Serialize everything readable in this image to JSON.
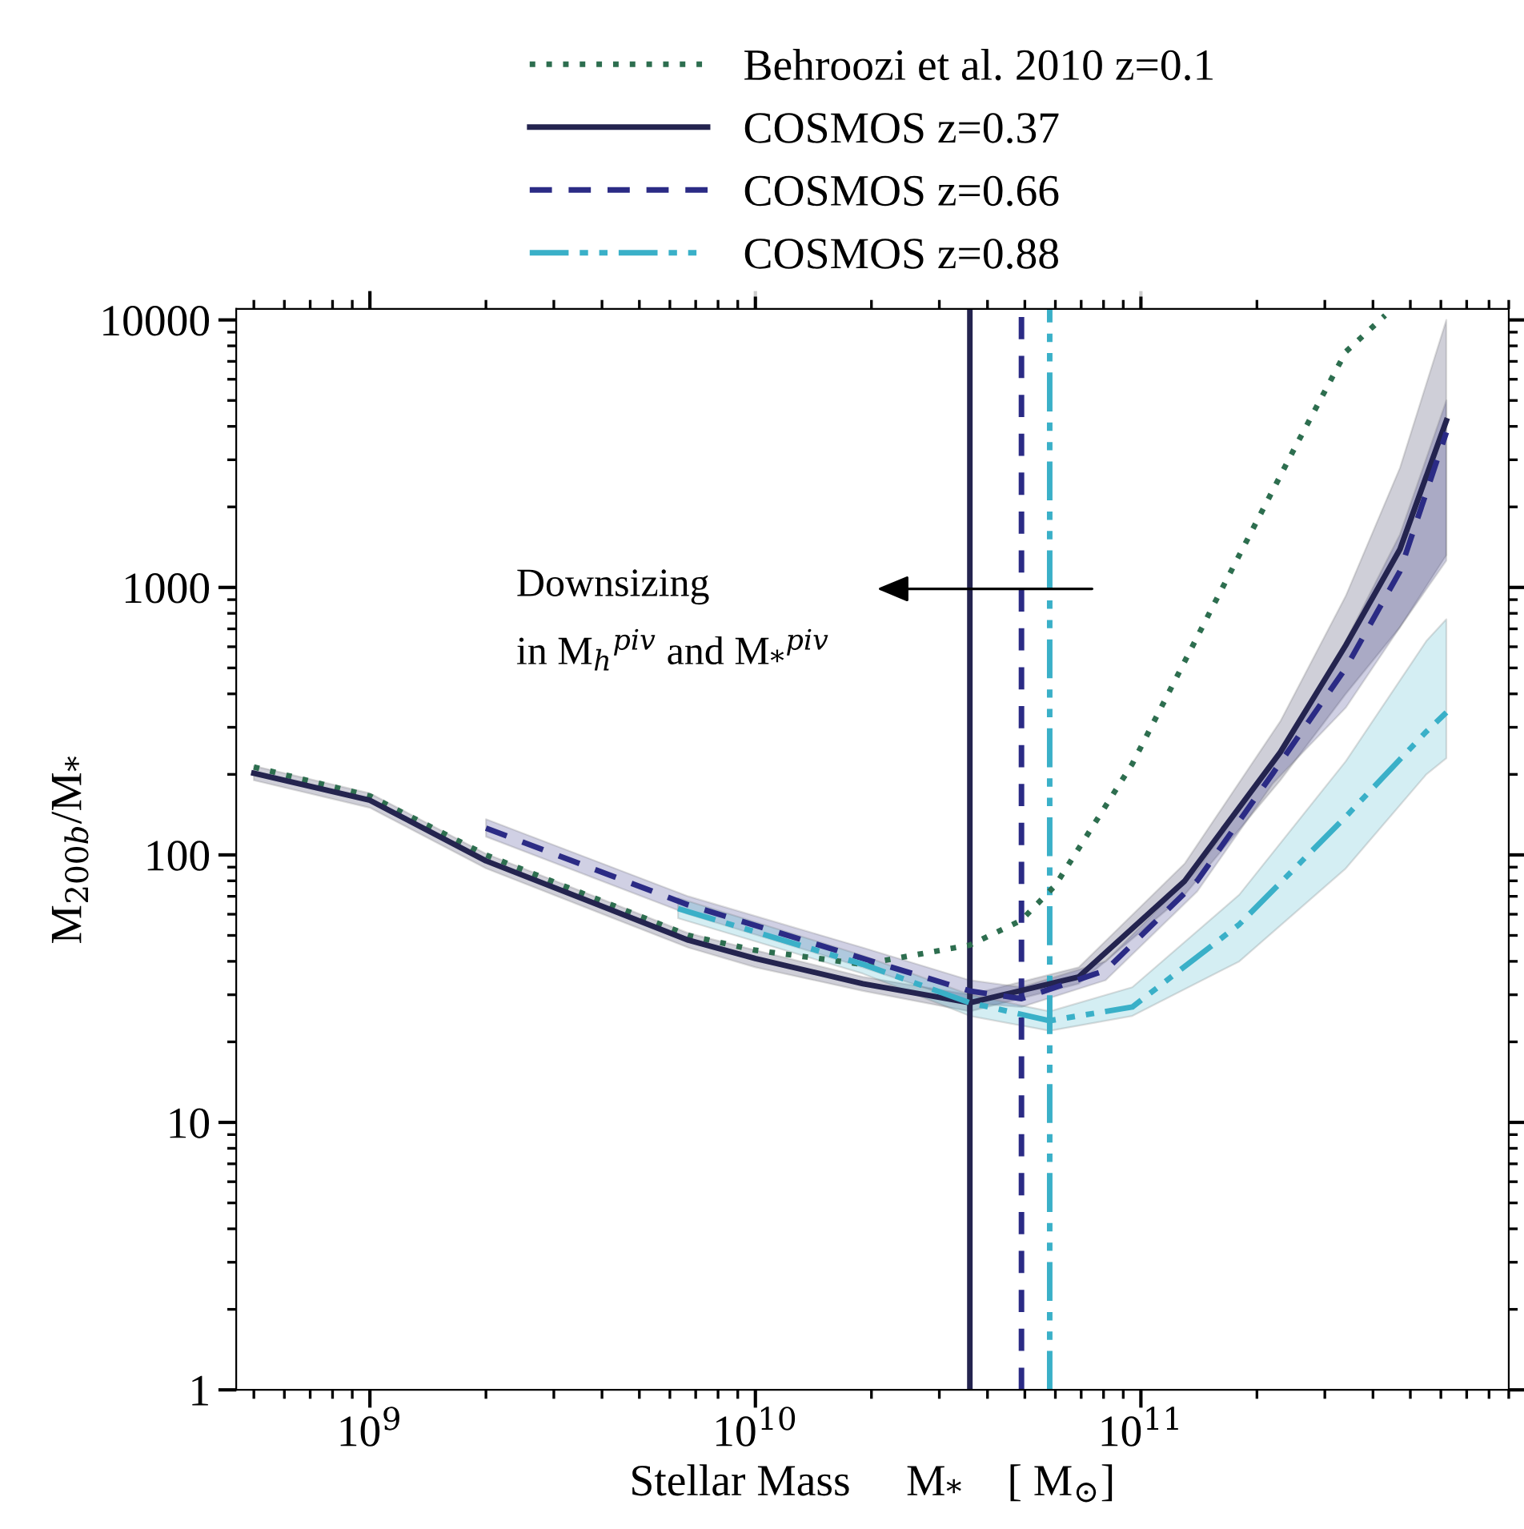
{
  "chart_data": {
    "type": "line",
    "xlabel": "Stellar Mass     M$_{*}$    [ M$_{⊙}$]",
    "ylabel": "M$_{200b}$/M$_{*}$",
    "log": "xy",
    "xlim": [
      450000000.0,
      900000000000.0
    ],
    "ylim": [
      1,
      11000
    ],
    "xticks": [
      {
        "value": 1000000000.0,
        "label": "10$^{9}$"
      },
      {
        "value": 10000000000.0,
        "label": "10$^{10}$"
      },
      {
        "value": 100000000000.0,
        "label": "10$^{11}$"
      }
    ],
    "yticks": [
      1,
      10,
      100,
      1000,
      10000
    ],
    "grid": false,
    "legend": "top",
    "annotations": [
      "Downsizing\nin M$_{h}$$^{piv}$ and M$_{*}$$^{piv}$"
    ],
    "series": [
      {
        "name": "Behroozi et al. 2010 z=0.1",
        "color": "#2d6e4f",
        "line_style": "dotted",
        "x": [
          500000000.0,
          1000000000.0,
          2000000000.0,
          6700000000.0,
          10000000000.0,
          19000000000.0,
          36000000000.0,
          49000000000.0,
          60000000000.0,
          95000000000.0,
          155000000000.0,
          250000000000.0,
          340000000000.0,
          430000000000.0
        ],
        "values": [
          213,
          166,
          100,
          50,
          44,
          39,
          46,
          57,
          77,
          219,
          870,
          3300,
          7600,
          10400
        ]
      },
      {
        "name": "COSMOS z=0.37",
        "color": "#24244f",
        "line_style": "solid",
        "x": [
          500000000.0,
          1000000000.0,
          2000000000.0,
          6700000000.0,
          10000000000.0,
          19000000000.0,
          36000000000.0,
          69000000000.0,
          130000000000.0,
          230000000000.0,
          340000000000.0,
          470000000000.0,
          620000000000.0
        ],
        "values": [
          202,
          160,
          95,
          48,
          41,
          33,
          28,
          35,
          80,
          242,
          608,
          1390,
          4200
        ],
        "lower": [
          190,
          150,
          89,
          45,
          38,
          31,
          26,
          33,
          71,
          190,
          400,
          710,
          1320
        ],
        "upper": [
          215,
          170,
          101,
          51,
          44,
          35,
          30,
          38,
          93,
          316,
          930,
          2800,
          10000
        ]
      },
      {
        "name": "COSMOS z=0.66",
        "color": "#2b2b85",
        "line_style": "dashed",
        "x": [
          2000000000.0,
          6700000000.0,
          19000000000.0,
          36000000000.0,
          49000000000.0,
          81000000000.0,
          140000000000.0,
          220000000000.0,
          340000000000.0,
          470000000000.0,
          620000000000.0
        ],
        "values": [
          126,
          65,
          41,
          31,
          29,
          37,
          80,
          202,
          500,
          1150,
          3800
        ],
        "lower": [
          117,
          60,
          38,
          28,
          27,
          34,
          73,
          185,
          355,
          710,
          1260
        ],
        "upper": [
          136,
          70,
          45,
          34,
          32,
          40,
          88,
          220,
          630,
          1580,
          5000
        ]
      },
      {
        "name": "COSMOS z=0.88",
        "color": "#3ab0c8",
        "line_style": "dashdotdot",
        "x": [
          6300000000.0,
          19000000000.0,
          36000000000.0,
          58000000000.0,
          95000000000.0,
          180000000000.0,
          340000000000.0,
          550000000000.0,
          620000000000.0
        ],
        "values": [
          63,
          39,
          28,
          24,
          27,
          55,
          139,
          289,
          341
        ],
        "lower": [
          58,
          36,
          25,
          22,
          25,
          40,
          89,
          200,
          230
        ],
        "upper": [
          69,
          42,
          30,
          26,
          32,
          71,
          224,
          630,
          760
        ]
      }
    ],
    "ref_lines": [
      {
        "axis": "x",
        "value": 36000000000.0,
        "color": "#24244f",
        "line_style": "solid"
      },
      {
        "axis": "x",
        "value": 49000000000.0,
        "color": "#2b2b85",
        "line_style": "dashed"
      },
      {
        "axis": "x",
        "value": 58000000000.0,
        "color": "#3ab0c8",
        "line_style": "dashdotdot"
      }
    ]
  }
}
